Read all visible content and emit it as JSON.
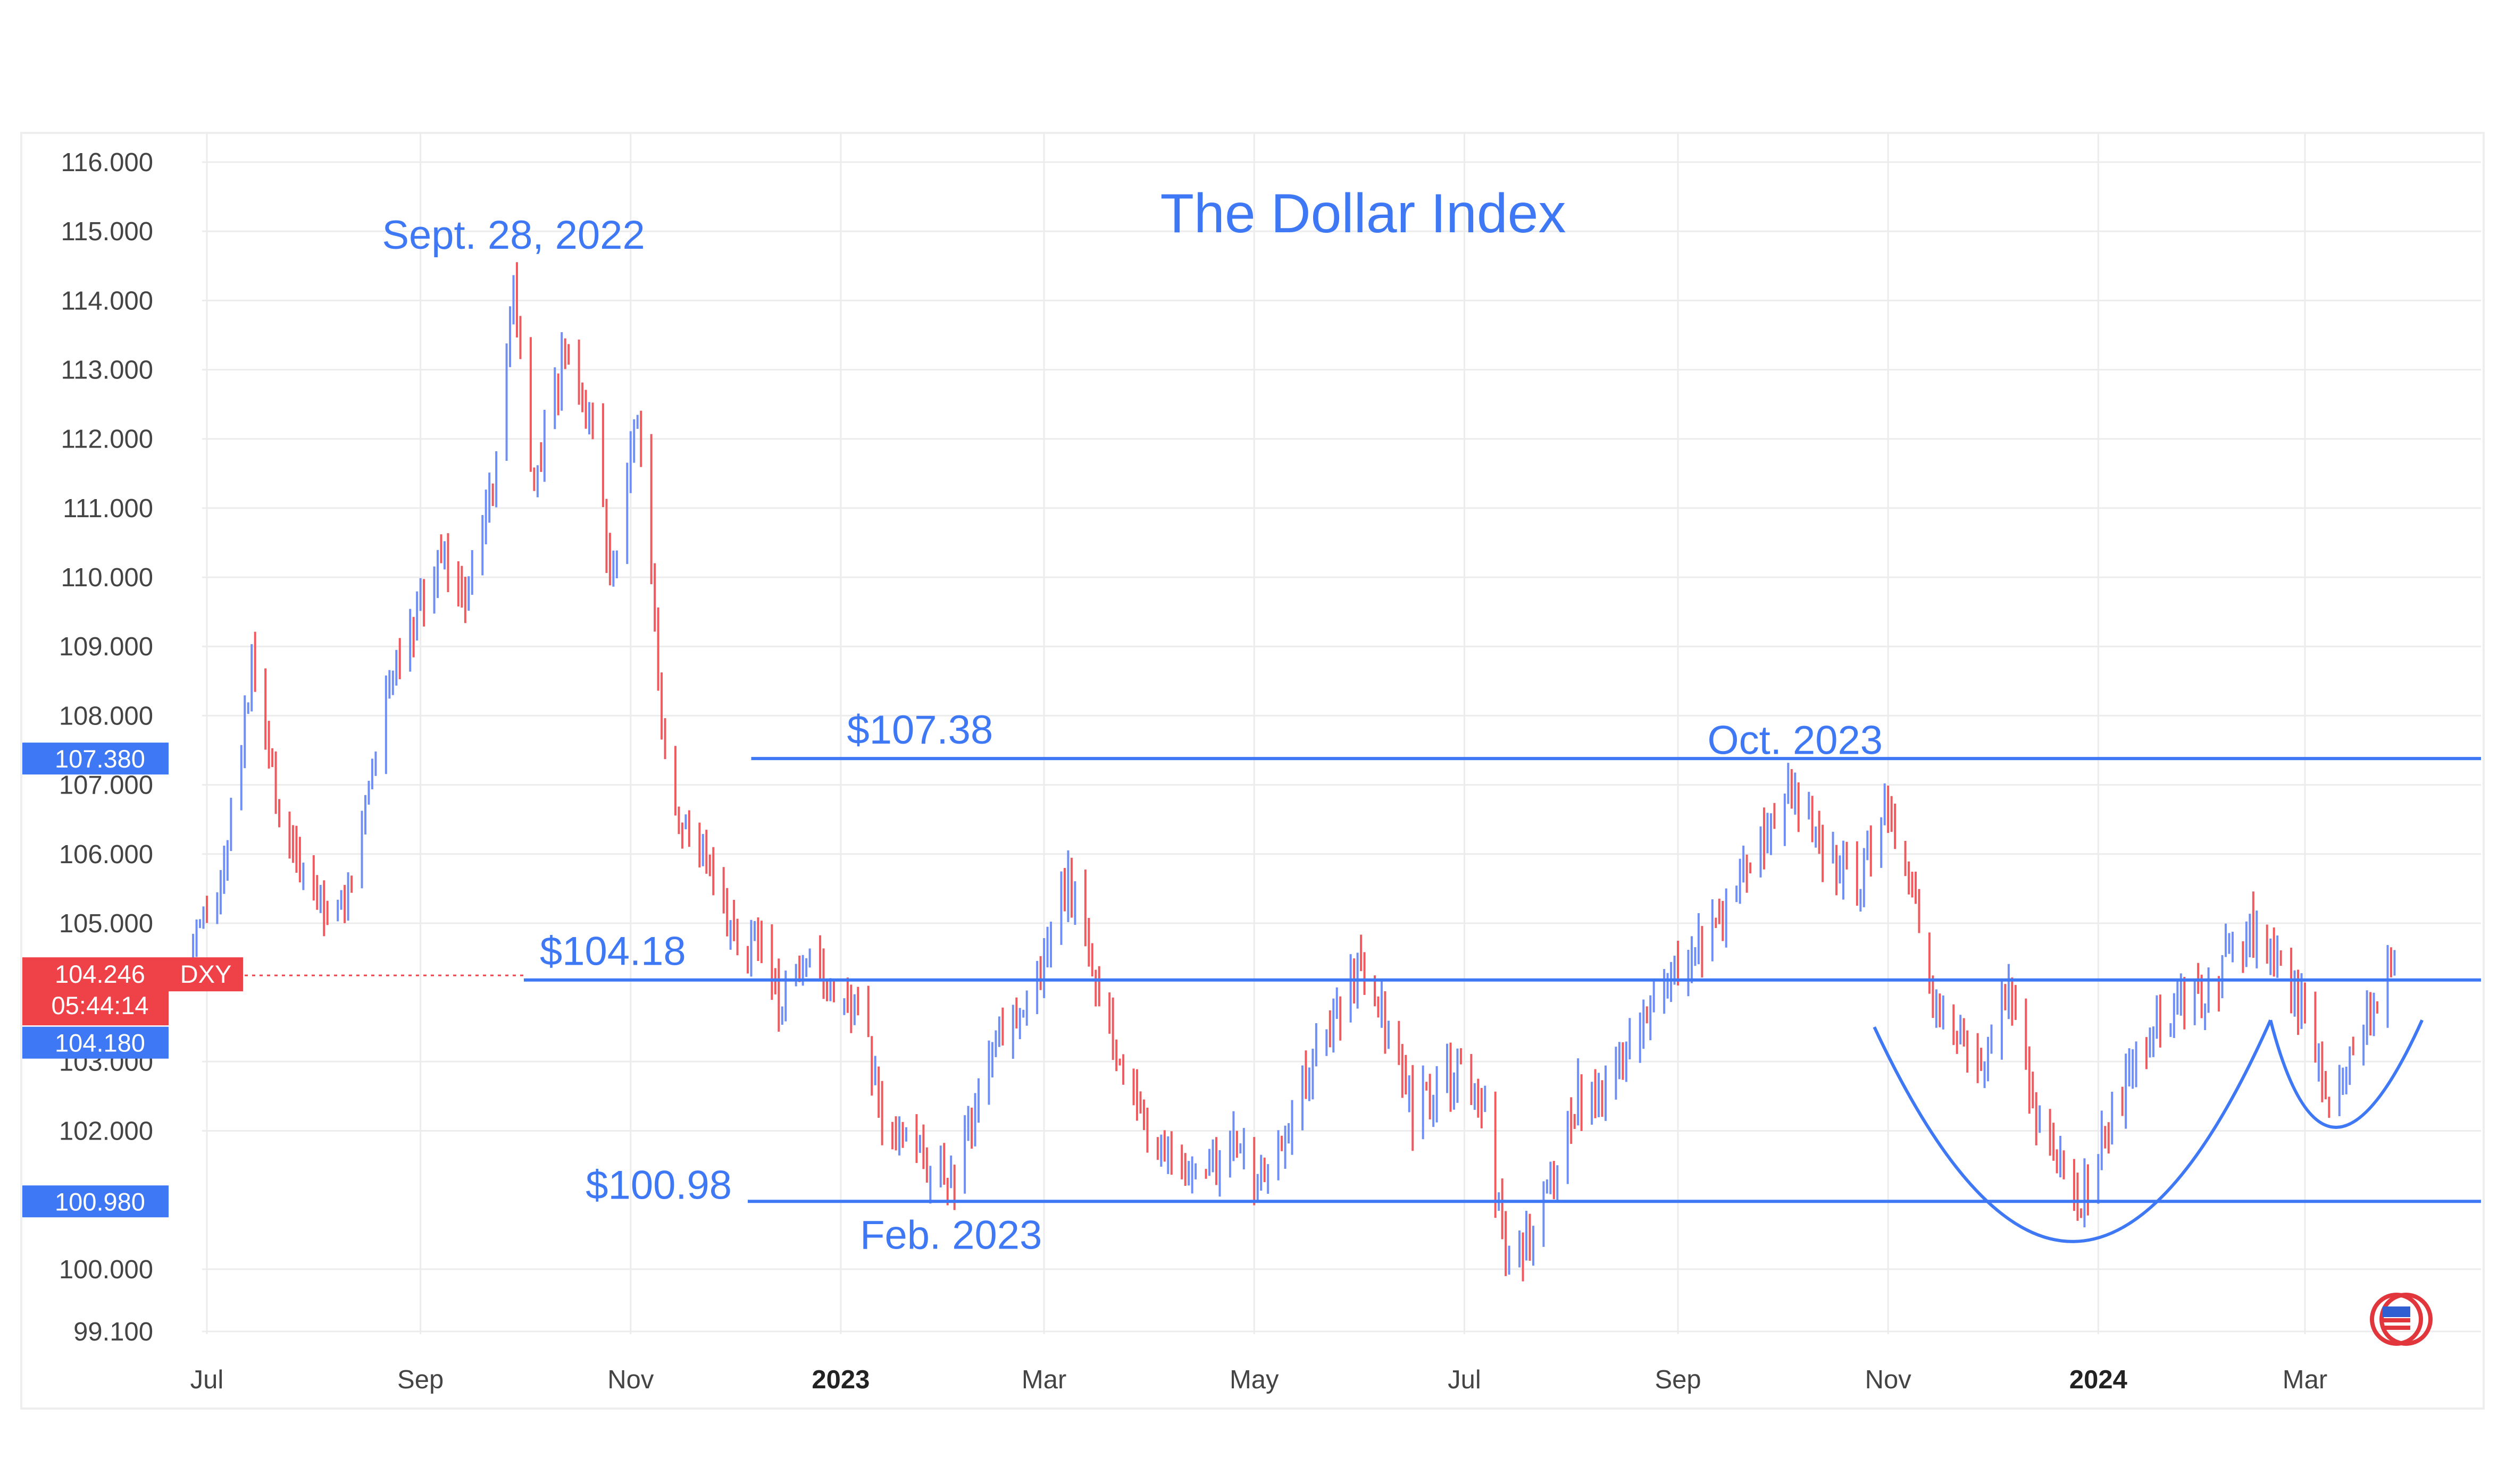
{
  "chart_data": {
    "type": "candlestick",
    "title": "The Dollar Index",
    "ylim": [
      99.1,
      116.0
    ],
    "y_ticks": [
      "116.000",
      "115.000",
      "114.000",
      "113.000",
      "112.000",
      "111.000",
      "110.000",
      "109.000",
      "108.000",
      "107.000",
      "106.000",
      "105.000",
      "103.000",
      "102.000",
      "100.000",
      "99.100"
    ],
    "x_ticks": [
      {
        "label": "Jul",
        "date": "2022-07-01",
        "bold": false
      },
      {
        "label": "Sep",
        "date": "2022-09-01",
        "bold": false
      },
      {
        "label": "Nov",
        "date": "2022-11-01",
        "bold": false
      },
      {
        "label": "2023",
        "date": "2023-01-01",
        "bold": true
      },
      {
        "label": "Mar",
        "date": "2023-03-01",
        "bold": false
      },
      {
        "label": "May",
        "date": "2023-05-01",
        "bold": false
      },
      {
        "label": "Jul",
        "date": "2023-07-01",
        "bold": false
      },
      {
        "label": "Sep",
        "date": "2023-09-01",
        "bold": false
      },
      {
        "label": "Nov",
        "date": "2023-11-01",
        "bold": false
      },
      {
        "label": "2024",
        "date": "2024-01-01",
        "bold": true
      },
      {
        "label": "Mar",
        "date": "2024-03-01",
        "bold": false
      }
    ],
    "x_range": [
      "2022-06-27",
      "2024-04-08"
    ],
    "series": [
      {
        "symbol": "DXY",
        "last_value": "104.246",
        "countdown": "05:44:14",
        "up_color": "#6f8ff5",
        "down_color": "#ef5a5f",
        "anchors": [
          [
            "2022-06-27",
            104.6
          ],
          [
            "2022-07-05",
            105.4
          ],
          [
            "2022-07-14",
            108.7
          ],
          [
            "2022-07-22",
            106.6
          ],
          [
            "2022-08-01",
            105.3
          ],
          [
            "2022-08-10",
            105.3
          ],
          [
            "2022-08-12",
            105.6
          ],
          [
            "2022-08-23",
            108.6
          ],
          [
            "2022-09-07",
            110.3
          ],
          [
            "2022-09-14",
            109.8
          ],
          [
            "2022-09-22",
            111.3
          ],
          [
            "2022-09-28",
            114.1
          ],
          [
            "2022-10-04",
            111.2
          ],
          [
            "2022-10-13",
            113.3
          ],
          [
            "2022-10-21",
            112.0
          ],
          [
            "2022-10-26",
            110.0
          ],
          [
            "2022-11-03",
            112.6
          ],
          [
            "2022-11-10",
            108.0
          ],
          [
            "2022-11-15",
            106.4
          ],
          [
            "2022-11-24",
            106.0
          ],
          [
            "2022-12-01",
            104.7
          ],
          [
            "2022-12-08",
            104.8
          ],
          [
            "2022-12-14",
            103.8
          ],
          [
            "2022-12-23",
            104.3
          ],
          [
            "2023-01-06",
            103.9
          ],
          [
            "2023-01-13",
            102.2
          ],
          [
            "2023-01-25",
            101.6
          ],
          [
            "2023-02-01",
            101.1
          ],
          [
            "2023-02-14",
            103.2
          ],
          [
            "2023-03-01",
            104.4
          ],
          [
            "2023-03-08",
            105.6
          ],
          [
            "2023-03-15",
            104.5
          ],
          [
            "2023-03-24",
            102.8
          ],
          [
            "2023-04-04",
            101.7
          ],
          [
            "2023-04-14",
            101.3
          ],
          [
            "2023-04-26",
            101.8
          ],
          [
            "2023-05-04",
            101.3
          ],
          [
            "2023-05-18",
            103.1
          ],
          [
            "2023-05-31",
            104.3
          ],
          [
            "2023-06-09",
            103.5
          ],
          [
            "2023-06-16",
            102.2
          ],
          [
            "2023-06-30",
            102.9
          ],
          [
            "2023-07-07",
            102.2
          ],
          [
            "2023-07-14",
            99.8
          ],
          [
            "2023-07-25",
            101.2
          ],
          [
            "2023-08-03",
            102.5
          ],
          [
            "2023-08-10",
            102.4
          ],
          [
            "2023-08-25",
            104.1
          ],
          [
            "2023-09-05",
            104.6
          ],
          [
            "2023-09-14",
            105.1
          ],
          [
            "2023-09-28",
            106.5
          ],
          [
            "2023-10-03",
            107.1
          ],
          [
            "2023-10-12",
            106.1
          ],
          [
            "2023-10-23",
            105.6
          ],
          [
            "2023-10-31",
            106.8
          ],
          [
            "2023-11-08",
            105.3
          ],
          [
            "2023-11-14",
            104.0
          ],
          [
            "2023-11-21",
            103.5
          ],
          [
            "2023-11-29",
            102.9
          ],
          [
            "2023-12-07",
            104.1
          ],
          [
            "2023-12-14",
            102.3
          ],
          [
            "2023-12-27",
            100.9
          ],
          [
            "2024-01-05",
            102.3
          ],
          [
            "2024-01-17",
            103.5
          ],
          [
            "2024-02-02",
            104.1
          ],
          [
            "2024-02-14",
            104.9
          ],
          [
            "2024-02-27",
            104.0
          ],
          [
            "2024-03-08",
            102.6
          ],
          [
            "2024-03-18",
            103.5
          ],
          [
            "2024-03-27",
            104.3
          ]
        ]
      }
    ],
    "horizontal_levels": [
      {
        "value": 107.38,
        "label": "$107.38",
        "axis_tag": "107.380",
        "from_date": "2022-12-06"
      },
      {
        "value": 104.18,
        "label": "$104.18",
        "axis_tag": "104.180",
        "from_date": "2022-10-01"
      },
      {
        "value": 100.98,
        "label": "$100.98",
        "axis_tag": "100.980",
        "from_date": "2022-12-05"
      }
    ],
    "annotations": [
      {
        "text": "Sept. 28, 2022",
        "date": "2022-09-28",
        "value": 114.9
      },
      {
        "text": "Oct. 2023",
        "date": "2023-10-05",
        "value": 107.6
      },
      {
        "text": "Feb. 2023",
        "date": "2023-02-02",
        "value": 100.45
      }
    ],
    "pattern_curves": [
      {
        "name": "left-cup",
        "points": [
          [
            "2023-10-28",
            103.5
          ],
          [
            "2023-12-25",
            100.4
          ],
          [
            "2024-02-20",
            103.6
          ]
        ]
      },
      {
        "name": "right-cup",
        "points": [
          [
            "2024-02-20",
            103.6
          ],
          [
            "2024-03-10",
            102.05
          ],
          [
            "2024-04-04",
            103.6
          ]
        ]
      }
    ],
    "colors": {
      "accent": "#3f78f5",
      "level_line": "#3f78f5",
      "down_tag": "#ef4248",
      "grid": "#ececec",
      "axis_text": "#444444"
    },
    "icon": "flag-badge-icon"
  }
}
